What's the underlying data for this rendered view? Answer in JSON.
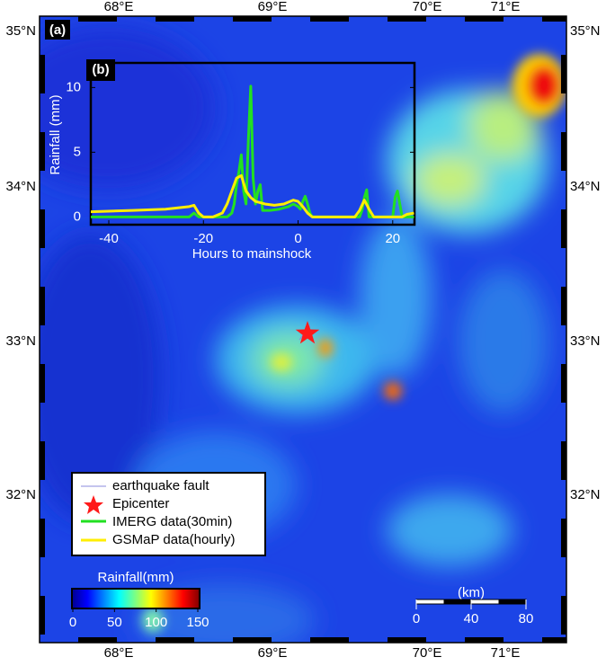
{
  "map": {
    "panel_label": "(a)",
    "lon_labels": [
      "68°E",
      "69°E",
      "70°E",
      "71°E"
    ],
    "lat_labels": [
      "35°N",
      "34°N",
      "33°N",
      "32°N"
    ],
    "legend": [
      "earthquake fault",
      "Epicenter",
      "IMERG data(30min)",
      "GSMaP data(hourly)"
    ],
    "colorbar": {
      "label": "Rainfall(mm)",
      "lim": [
        0,
        150
      ],
      "ticks": [
        0,
        50,
        100,
        150
      ]
    },
    "scale_bar": {
      "label": "(km)",
      "ticks": [
        0,
        40,
        80
      ]
    }
  },
  "chart_data": {
    "type": "line",
    "panel_label": "(b)",
    "x_label": "Hours to mainshock",
    "y_label": "Rainfall (mm)",
    "xlim": [
      -43.8,
      24.6
    ],
    "ylim": [
      -0.6,
      11.9
    ],
    "xticks": [
      -40,
      -20,
      0,
      20
    ],
    "yticks": [
      0,
      5,
      10
    ],
    "series": [
      {
        "name": "IMERG data(30min)",
        "color": "#22e022",
        "x": [
          -44,
          -30,
          -23,
          -22,
          -21,
          -15,
          -14,
          -13.5,
          -13,
          -12.5,
          -12,
          -11.5,
          -11,
          -10.5,
          -10,
          -9.5,
          -9,
          -8.5,
          -8,
          -7.5,
          -6,
          -4,
          -2,
          -1,
          0,
          0.5,
          1,
          1.5,
          2,
          2.5,
          3,
          13,
          13.5,
          14,
          14.5,
          15,
          20,
          20.5,
          21,
          21.5,
          22,
          24.5
        ],
        "values": [
          0,
          0,
          0,
          0.3,
          0,
          0,
          0.3,
          1,
          2.5,
          3.5,
          4.8,
          2,
          1,
          6,
          10.1,
          3,
          1,
          2,
          2.5,
          0.5,
          0.5,
          0.6,
          0.8,
          1,
          0.8,
          0.6,
          1.2,
          1.6,
          1,
          0.3,
          0,
          0,
          0.5,
          1.5,
          2.1,
          0,
          0,
          1.5,
          2,
          1,
          0,
          0
        ]
      },
      {
        "name": "GSMaP data(hourly)",
        "color": "#ffee00",
        "x": [
          -44,
          -35,
          -28,
          -23,
          -22,
          -21,
          -20,
          -18,
          -16,
          -15,
          -14,
          -13,
          -12,
          -11,
          -10,
          -9,
          -7,
          -5,
          -3,
          -1,
          0,
          1,
          2,
          3,
          4,
          12,
          13,
          14,
          15,
          16,
          22,
          23,
          24.5
        ],
        "values": [
          0.4,
          0.5,
          0.6,
          0.8,
          0.9,
          0.3,
          0,
          0,
          0.3,
          1,
          2,
          3,
          3.2,
          2,
          1.5,
          1.2,
          1,
          0.9,
          1,
          1.3,
          1.2,
          0.8,
          0.3,
          0,
          0,
          0,
          0.5,
          1.3,
          0.6,
          0,
          0,
          0.2,
          0.3
        ]
      }
    ]
  }
}
